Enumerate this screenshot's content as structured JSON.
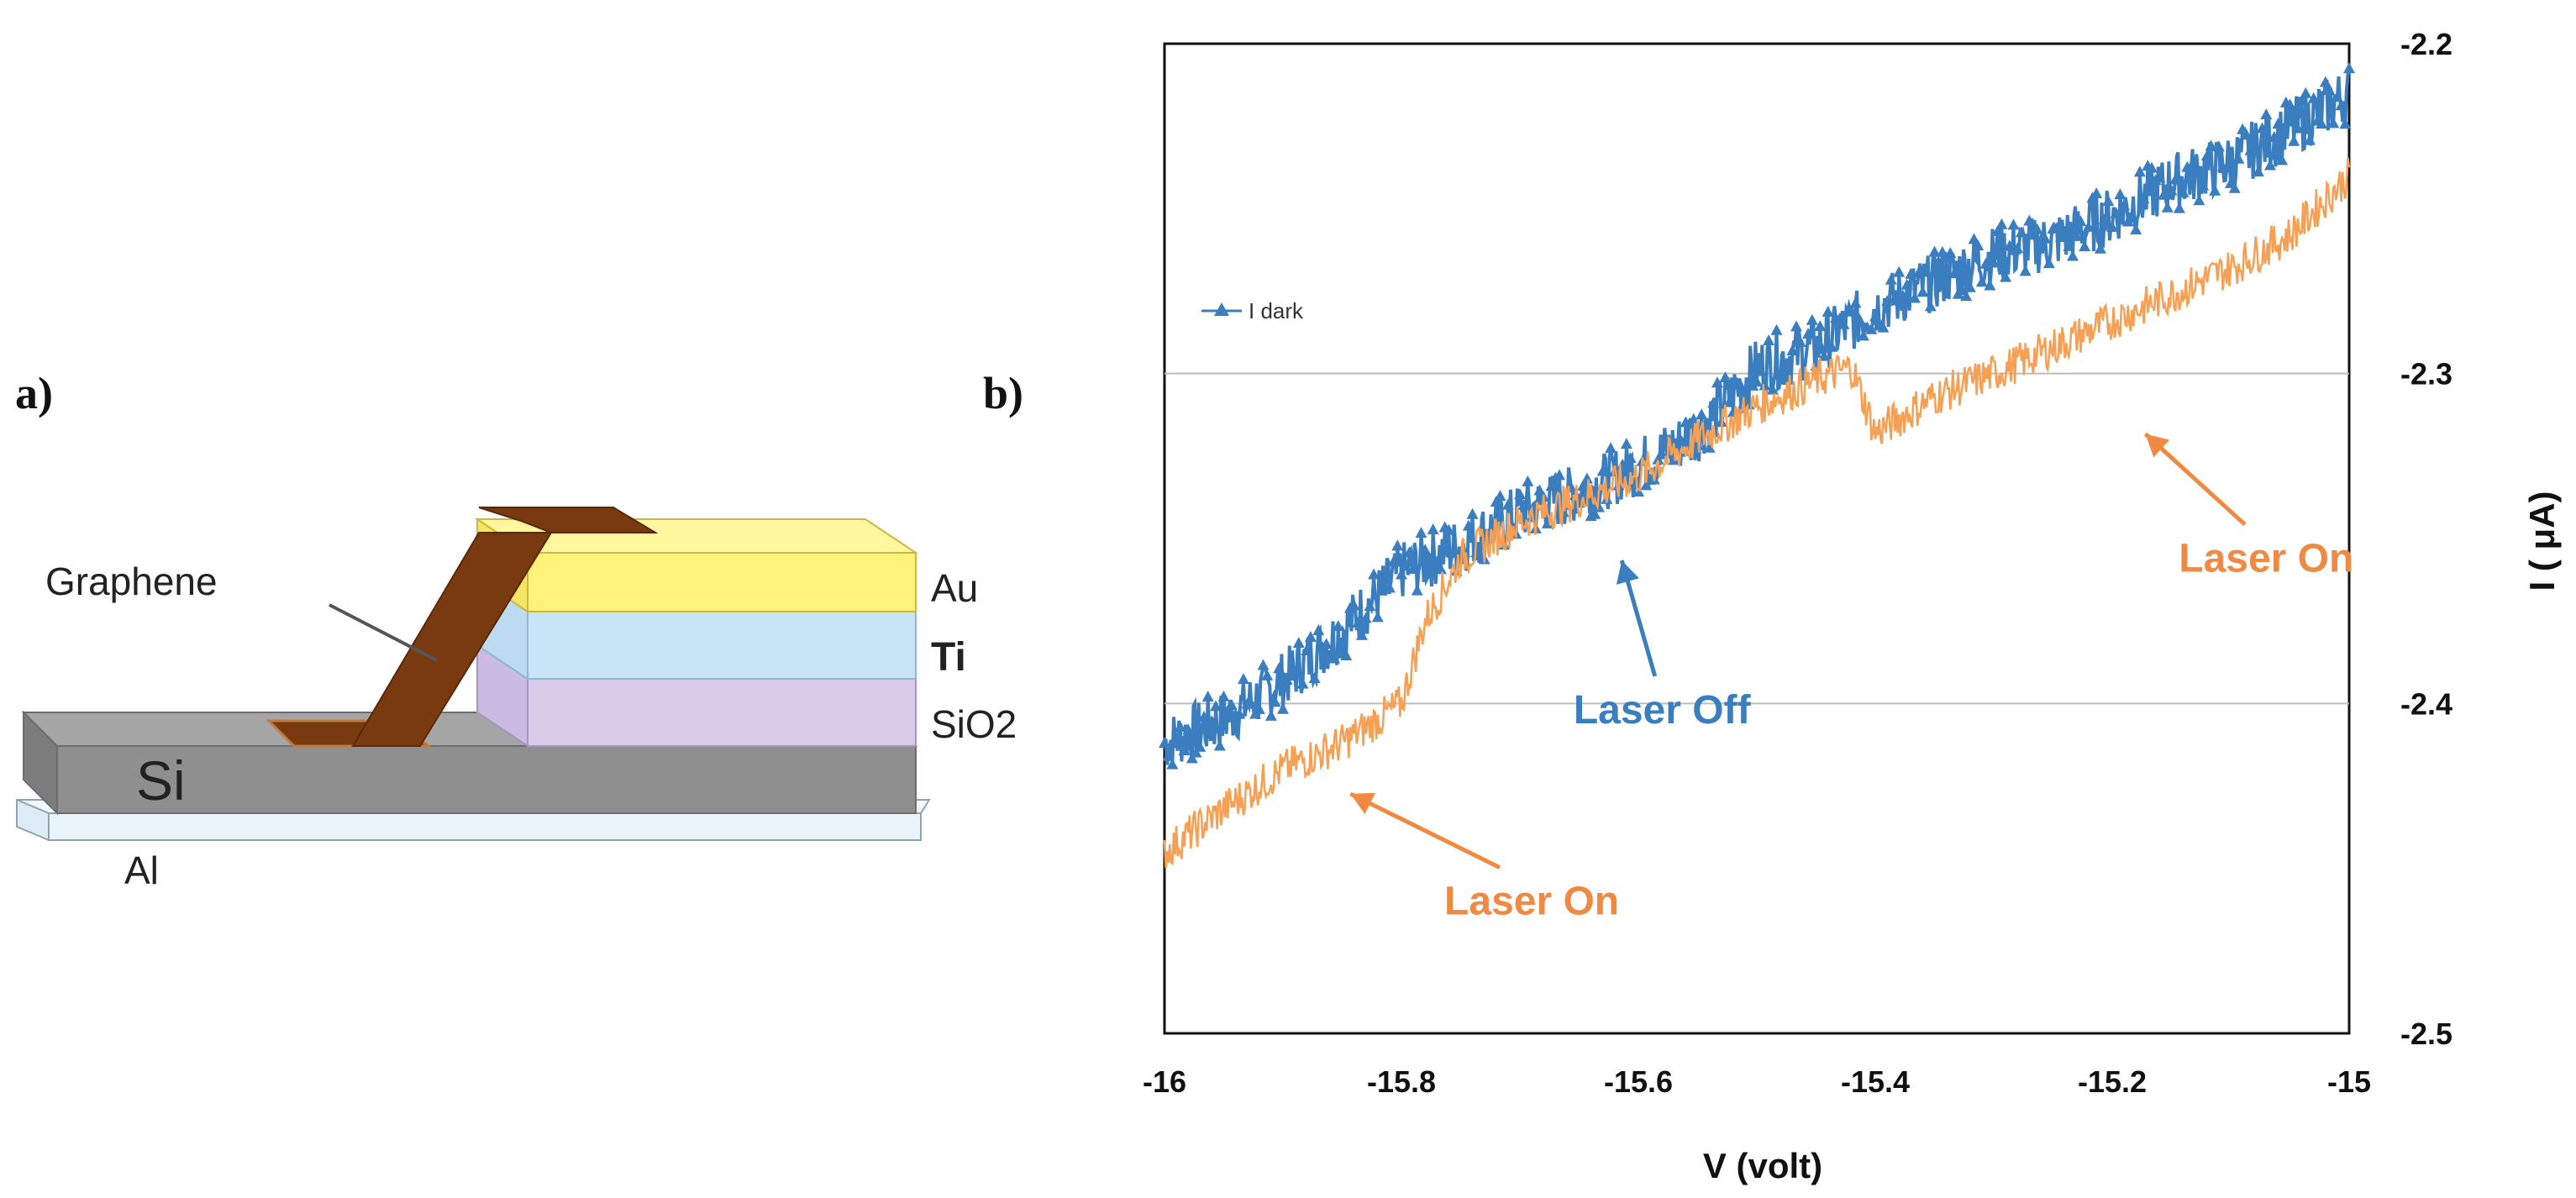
{
  "panel_a": {
    "label": "a)",
    "layers": {
      "graphene": "Graphene",
      "au": "Au",
      "ti": "Ti",
      "sio2": "SiO2",
      "si": "Si",
      "al": "Al"
    },
    "colors": {
      "graphene": "#7a3a10",
      "au": "#fff27a",
      "ti": "#c9e4f6",
      "sio2": "#d9cbe8",
      "si": "#8f8f8f",
      "al": "#e9f4fb"
    }
  },
  "panel_b": {
    "label": "b)"
  },
  "chart_data": {
    "type": "line",
    "xlabel": "V (volt)",
    "ylabel": "I ( μA)",
    "xlim": [
      -16,
      -15
    ],
    "ylim": [
      -2.5,
      -2.2
    ],
    "x_ticks": [
      "-16",
      "-15.8",
      "-15.6",
      "-15.4",
      "-15.2",
      "-15"
    ],
    "y_ticks": [
      "-2.2",
      "-2.3",
      "-2.4",
      "-2.5"
    ],
    "y_axis_side": "right",
    "gridlines_y": [
      -2.3,
      -2.4
    ],
    "legend": {
      "entries": [
        "I dark"
      ],
      "placement": "top-left"
    },
    "series": [
      {
        "name": "Laser Off",
        "color": "#3a7ec0",
        "marker": "triangle",
        "points": [
          [
            -16.0,
            -2.412
          ],
          [
            -15.95,
            -2.405
          ],
          [
            -15.9,
            -2.393
          ],
          [
            -15.85,
            -2.378
          ],
          [
            -15.8,
            -2.36
          ],
          [
            -15.75,
            -2.352
          ],
          [
            -15.7,
            -2.342
          ],
          [
            -15.65,
            -2.336
          ],
          [
            -15.6,
            -2.328
          ],
          [
            -15.55,
            -2.318
          ],
          [
            -15.5,
            -2.298
          ],
          [
            -15.45,
            -2.292
          ],
          [
            -15.4,
            -2.28
          ],
          [
            -15.35,
            -2.272
          ],
          [
            -15.3,
            -2.264
          ],
          [
            -15.25,
            -2.26
          ],
          [
            -15.2,
            -2.252
          ],
          [
            -15.15,
            -2.242
          ],
          [
            -15.1,
            -2.236
          ],
          [
            -15.05,
            -2.226
          ],
          [
            -15.0,
            -2.215
          ]
        ]
      },
      {
        "name": "Laser On",
        "color": "#f7a054",
        "marker": "none",
        "points": [
          [
            -16.0,
            -2.445
          ],
          [
            -15.95,
            -2.432
          ],
          [
            -15.9,
            -2.42
          ],
          [
            -15.85,
            -2.412
          ],
          [
            -15.82,
            -2.405
          ],
          [
            -15.8,
            -2.4
          ],
          [
            -15.78,
            -2.375
          ],
          [
            -15.75,
            -2.356
          ],
          [
            -15.7,
            -2.345
          ],
          [
            -15.65,
            -2.338
          ],
          [
            -15.6,
            -2.331
          ],
          [
            -15.55,
            -2.32
          ],
          [
            -15.5,
            -2.31
          ],
          [
            -15.45,
            -2.302
          ],
          [
            -15.42,
            -2.298
          ],
          [
            -15.4,
            -2.318
          ],
          [
            -15.35,
            -2.307
          ],
          [
            -15.3,
            -2.3
          ],
          [
            -15.25,
            -2.292
          ],
          [
            -15.2,
            -2.284
          ],
          [
            -15.15,
            -2.276
          ],
          [
            -15.1,
            -2.268
          ],
          [
            -15.05,
            -2.258
          ],
          [
            -15.0,
            -2.24
          ]
        ]
      }
    ],
    "annotations": [
      {
        "text": "Laser Off",
        "series": "Laser Off",
        "color": "#3a7ec0",
        "text_at": [
          -15.58,
          -2.406
        ],
        "arrow_to": [
          -15.62,
          -2.35
        ]
      },
      {
        "text": "Laser On",
        "series": "Laser On",
        "color": "#f08a43",
        "text_at": [
          -15.07,
          -2.36
        ],
        "arrow_to": [
          -15.19,
          -2.313
        ]
      },
      {
        "text": "Laser On",
        "series": "Laser On",
        "color": "#f08a43",
        "text_at": [
          -15.69,
          -2.464
        ],
        "arrow_to": [
          -15.87,
          -2.423
        ]
      }
    ]
  }
}
